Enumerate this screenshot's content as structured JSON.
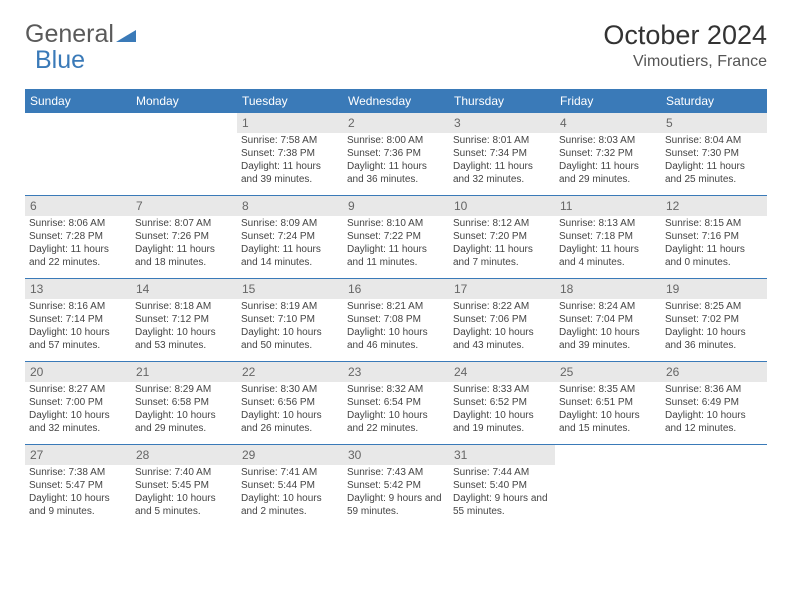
{
  "brand": {
    "part1": "General",
    "part2": "Blue",
    "triangle_color": "#3a7ab8"
  },
  "header": {
    "month_year": "October 2024",
    "location": "Vimoutiers, France"
  },
  "colors": {
    "header_bg": "#3a7ab8",
    "daynum_bg": "#e8e8e8",
    "divider": "#3a7ab8"
  },
  "days_of_week": [
    "Sunday",
    "Monday",
    "Tuesday",
    "Wednesday",
    "Thursday",
    "Friday",
    "Saturday"
  ],
  "weeks": [
    [
      {
        "blank": true
      },
      {
        "blank": true
      },
      {
        "n": "1",
        "sr": "7:58 AM",
        "ss": "7:38 PM",
        "dl": "11 hours and 39 minutes."
      },
      {
        "n": "2",
        "sr": "8:00 AM",
        "ss": "7:36 PM",
        "dl": "11 hours and 36 minutes."
      },
      {
        "n": "3",
        "sr": "8:01 AM",
        "ss": "7:34 PM",
        "dl": "11 hours and 32 minutes."
      },
      {
        "n": "4",
        "sr": "8:03 AM",
        "ss": "7:32 PM",
        "dl": "11 hours and 29 minutes."
      },
      {
        "n": "5",
        "sr": "8:04 AM",
        "ss": "7:30 PM",
        "dl": "11 hours and 25 minutes."
      }
    ],
    [
      {
        "n": "6",
        "sr": "8:06 AM",
        "ss": "7:28 PM",
        "dl": "11 hours and 22 minutes."
      },
      {
        "n": "7",
        "sr": "8:07 AM",
        "ss": "7:26 PM",
        "dl": "11 hours and 18 minutes."
      },
      {
        "n": "8",
        "sr": "8:09 AM",
        "ss": "7:24 PM",
        "dl": "11 hours and 14 minutes."
      },
      {
        "n": "9",
        "sr": "8:10 AM",
        "ss": "7:22 PM",
        "dl": "11 hours and 11 minutes."
      },
      {
        "n": "10",
        "sr": "8:12 AM",
        "ss": "7:20 PM",
        "dl": "11 hours and 7 minutes."
      },
      {
        "n": "11",
        "sr": "8:13 AM",
        "ss": "7:18 PM",
        "dl": "11 hours and 4 minutes."
      },
      {
        "n": "12",
        "sr": "8:15 AM",
        "ss": "7:16 PM",
        "dl": "11 hours and 0 minutes."
      }
    ],
    [
      {
        "n": "13",
        "sr": "8:16 AM",
        "ss": "7:14 PM",
        "dl": "10 hours and 57 minutes."
      },
      {
        "n": "14",
        "sr": "8:18 AM",
        "ss": "7:12 PM",
        "dl": "10 hours and 53 minutes."
      },
      {
        "n": "15",
        "sr": "8:19 AM",
        "ss": "7:10 PM",
        "dl": "10 hours and 50 minutes."
      },
      {
        "n": "16",
        "sr": "8:21 AM",
        "ss": "7:08 PM",
        "dl": "10 hours and 46 minutes."
      },
      {
        "n": "17",
        "sr": "8:22 AM",
        "ss": "7:06 PM",
        "dl": "10 hours and 43 minutes."
      },
      {
        "n": "18",
        "sr": "8:24 AM",
        "ss": "7:04 PM",
        "dl": "10 hours and 39 minutes."
      },
      {
        "n": "19",
        "sr": "8:25 AM",
        "ss": "7:02 PM",
        "dl": "10 hours and 36 minutes."
      }
    ],
    [
      {
        "n": "20",
        "sr": "8:27 AM",
        "ss": "7:00 PM",
        "dl": "10 hours and 32 minutes."
      },
      {
        "n": "21",
        "sr": "8:29 AM",
        "ss": "6:58 PM",
        "dl": "10 hours and 29 minutes."
      },
      {
        "n": "22",
        "sr": "8:30 AM",
        "ss": "6:56 PM",
        "dl": "10 hours and 26 minutes."
      },
      {
        "n": "23",
        "sr": "8:32 AM",
        "ss": "6:54 PM",
        "dl": "10 hours and 22 minutes."
      },
      {
        "n": "24",
        "sr": "8:33 AM",
        "ss": "6:52 PM",
        "dl": "10 hours and 19 minutes."
      },
      {
        "n": "25",
        "sr": "8:35 AM",
        "ss": "6:51 PM",
        "dl": "10 hours and 15 minutes."
      },
      {
        "n": "26",
        "sr": "8:36 AM",
        "ss": "6:49 PM",
        "dl": "10 hours and 12 minutes."
      }
    ],
    [
      {
        "n": "27",
        "sr": "7:38 AM",
        "ss": "5:47 PM",
        "dl": "10 hours and 9 minutes."
      },
      {
        "n": "28",
        "sr": "7:40 AM",
        "ss": "5:45 PM",
        "dl": "10 hours and 5 minutes."
      },
      {
        "n": "29",
        "sr": "7:41 AM",
        "ss": "5:44 PM",
        "dl": "10 hours and 2 minutes."
      },
      {
        "n": "30",
        "sr": "7:43 AM",
        "ss": "5:42 PM",
        "dl": "9 hours and 59 minutes."
      },
      {
        "n": "31",
        "sr": "7:44 AM",
        "ss": "5:40 PM",
        "dl": "9 hours and 55 minutes."
      },
      {
        "blank": true
      },
      {
        "blank": true
      }
    ]
  ],
  "labels": {
    "sunrise": "Sunrise: ",
    "sunset": "Sunset: ",
    "daylight": "Daylight: "
  }
}
